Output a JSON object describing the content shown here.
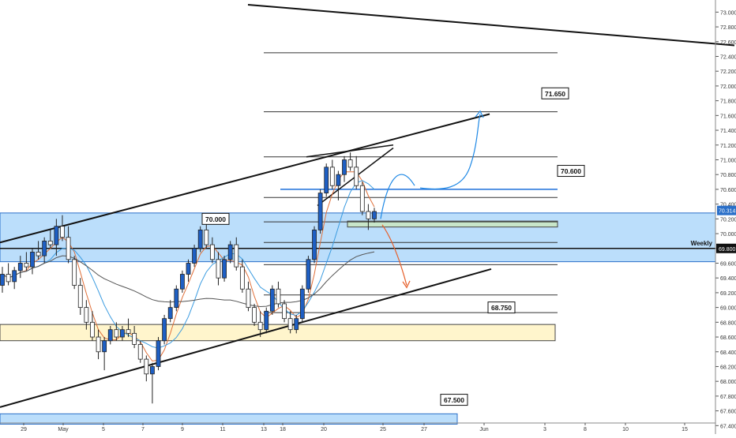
{
  "chart_data": {
    "type": "candlestick",
    "symbol": "USDINR",
    "y_axis": {
      "min": 67.35,
      "max": 73.1,
      "tick_step": 0.2,
      "tick_labels": [
        "67.400",
        "67.600",
        "67.800",
        "68.000",
        "68.200",
        "68.400",
        "68.600",
        "68.800",
        "69.000",
        "69.200",
        "69.400",
        "69.600",
        "69.800",
        "70.000",
        "70.200",
        "70.400",
        "70.600",
        "70.800",
        "71.000",
        "71.200",
        "71.400",
        "71.600",
        "71.800",
        "72.000",
        "72.200",
        "72.400",
        "72.600",
        "72.800",
        "73.000"
      ]
    },
    "x_axis": {
      "labels": [
        "29",
        "May",
        "5",
        "7",
        "9",
        "11",
        "13",
        "18",
        "20",
        "25",
        "27",
        "Jun",
        "3",
        "8",
        "10",
        "15"
      ]
    },
    "current_price": {
      "label": "70.314",
      "value": 70.314
    },
    "weekly_level": {
      "label": "Weekly",
      "price_label": "69.800",
      "value": 69.8
    },
    "zones": [
      {
        "name": "weekly-zone",
        "from": 69.62,
        "to": 70.28,
        "color": "#bbdefb"
      },
      {
        "name": "support-zone",
        "from": 68.55,
        "to": 68.77,
        "color": "#fff5cc"
      },
      {
        "name": "bottom-zone",
        "from": 67.42,
        "to": 67.56,
        "color": "#bbdefb"
      },
      {
        "name": "small-box",
        "from": 70.09,
        "to": 70.17,
        "color": "#c8e6c9"
      }
    ],
    "annotations": [
      {
        "label": "71.650",
        "price": 71.65
      },
      {
        "label": "70.600",
        "price": 70.6
      },
      {
        "label": "70.000",
        "price": 70.0
      },
      {
        "label": "68.750",
        "price": 68.75
      },
      {
        "label": "67.500",
        "price": 67.5
      }
    ],
    "horizontal_levels": [
      72.45,
      71.65,
      71.04,
      70.49,
      70.16,
      69.88,
      69.58,
      69.17,
      68.93
    ],
    "candles": [
      [
        69.3,
        69.55,
        69.2,
        69.45
      ],
      [
        69.45,
        69.6,
        69.3,
        69.35
      ],
      [
        69.35,
        69.55,
        69.25,
        69.5
      ],
      [
        69.5,
        69.7,
        69.4,
        69.6
      ],
      [
        69.6,
        69.75,
        69.5,
        69.55
      ],
      [
        69.55,
        69.8,
        69.45,
        69.75
      ],
      [
        69.75,
        69.9,
        69.65,
        69.7
      ],
      [
        69.7,
        69.95,
        69.6,
        69.9
      ],
      [
        69.9,
        70.05,
        69.8,
        69.85
      ],
      [
        69.85,
        70.2,
        69.7,
        70.1
      ],
      [
        70.1,
        70.25,
        69.9,
        69.95
      ],
      [
        69.95,
        70.1,
        69.6,
        69.65
      ],
      [
        69.65,
        69.7,
        69.25,
        69.3
      ],
      [
        69.3,
        69.4,
        68.9,
        69.0
      ],
      [
        69.0,
        69.1,
        68.7,
        68.8
      ],
      [
        68.8,
        68.95,
        68.55,
        68.6
      ],
      [
        68.6,
        68.7,
        68.3,
        68.4
      ],
      [
        68.4,
        68.6,
        68.15,
        68.55
      ],
      [
        68.55,
        68.75,
        68.5,
        68.7
      ],
      [
        68.7,
        68.8,
        68.55,
        68.6
      ],
      [
        68.6,
        68.75,
        68.55,
        68.7
      ],
      [
        68.7,
        68.85,
        68.6,
        68.65
      ],
      [
        68.65,
        68.75,
        68.45,
        68.5
      ],
      [
        68.5,
        68.55,
        68.25,
        68.3
      ],
      [
        68.3,
        68.35,
        68.0,
        68.1
      ],
      [
        68.1,
        68.25,
        67.7,
        68.2
      ],
      [
        68.2,
        68.6,
        68.15,
        68.55
      ],
      [
        68.55,
        68.9,
        68.5,
        68.85
      ],
      [
        68.85,
        69.1,
        68.8,
        69.0
      ],
      [
        69.0,
        69.3,
        68.95,
        69.25
      ],
      [
        69.25,
        69.5,
        69.2,
        69.45
      ],
      [
        69.45,
        69.65,
        69.35,
        69.6
      ],
      [
        69.6,
        69.85,
        69.55,
        69.8
      ],
      [
        69.8,
        70.1,
        69.75,
        70.05
      ],
      [
        70.05,
        70.15,
        69.8,
        69.85
      ],
      [
        69.85,
        69.95,
        69.6,
        69.65
      ],
      [
        69.65,
        69.75,
        69.3,
        69.4
      ],
      [
        69.4,
        69.7,
        69.35,
        69.65
      ],
      [
        69.65,
        69.9,
        69.6,
        69.85
      ],
      [
        69.85,
        69.95,
        69.5,
        69.55
      ],
      [
        69.55,
        69.65,
        69.2,
        69.25
      ],
      [
        69.25,
        69.35,
        68.95,
        69.0
      ],
      [
        69.0,
        69.05,
        68.75,
        68.8
      ],
      [
        68.8,
        68.95,
        68.6,
        68.7
      ],
      [
        68.7,
        69.0,
        68.65,
        68.95
      ],
      [
        68.95,
        69.3,
        68.9,
        69.25
      ],
      [
        69.25,
        69.35,
        69.0,
        69.05
      ],
      [
        69.05,
        69.1,
        68.8,
        68.85
      ],
      [
        68.85,
        68.95,
        68.65,
        68.7
      ],
      [
        68.7,
        68.9,
        68.65,
        68.85
      ],
      [
        68.85,
        69.3,
        68.8,
        69.25
      ],
      [
        69.25,
        69.7,
        69.2,
        69.65
      ],
      [
        69.65,
        70.1,
        69.6,
        70.05
      ],
      [
        70.05,
        70.6,
        70.0,
        70.55
      ],
      [
        70.55,
        70.95,
        70.5,
        70.9
      ],
      [
        70.9,
        71.0,
        70.6,
        70.65
      ],
      [
        70.65,
        70.85,
        70.45,
        70.8
      ],
      [
        70.8,
        71.05,
        70.7,
        71.0
      ],
      [
        71.0,
        71.1,
        70.85,
        70.9
      ],
      [
        70.9,
        71.05,
        70.6,
        70.65
      ],
      [
        70.65,
        70.7,
        70.25,
        70.3
      ],
      [
        70.3,
        70.4,
        70.05,
        70.2
      ],
      [
        70.2,
        70.35,
        70.15,
        70.3
      ]
    ]
  }
}
